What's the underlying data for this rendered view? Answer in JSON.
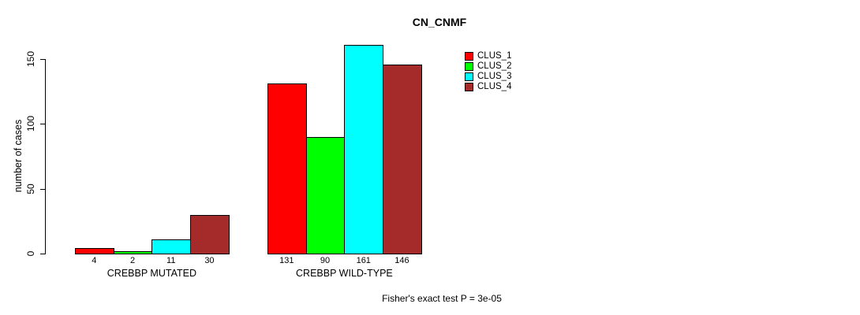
{
  "chart_data": {
    "type": "bar",
    "title": "CN_CNMF",
    "ylabel": "number of cases",
    "xlabel": "",
    "ylim": [
      0,
      150
    ],
    "yticks": [
      0,
      50,
      100,
      150
    ],
    "grid": false,
    "legend_position": "right-top",
    "categories": [
      "CREBBP MUTATED",
      "CREBBP WILD-TYPE"
    ],
    "series": [
      {
        "name": "CLUS_1",
        "color": "#ff0000",
        "values": [
          4,
          131
        ]
      },
      {
        "name": "CLUS_2",
        "color": "#00ff00",
        "values": [
          2,
          90
        ]
      },
      {
        "name": "CLUS_3",
        "color": "#00ffff",
        "values": [
          11,
          161
        ]
      },
      {
        "name": "CLUS_4",
        "color": "#a52a2a",
        "values": [
          30,
          146
        ]
      }
    ],
    "bar_value_labels": [
      [
        4,
        2,
        11,
        30
      ],
      [
        131,
        90,
        161,
        146
      ]
    ],
    "annotation": "Fisher's exact test P = 3e-05"
  },
  "colors": {
    "background": "#ffffff",
    "axis": "#000000",
    "bar_border": "#000000",
    "text": "#000000"
  }
}
